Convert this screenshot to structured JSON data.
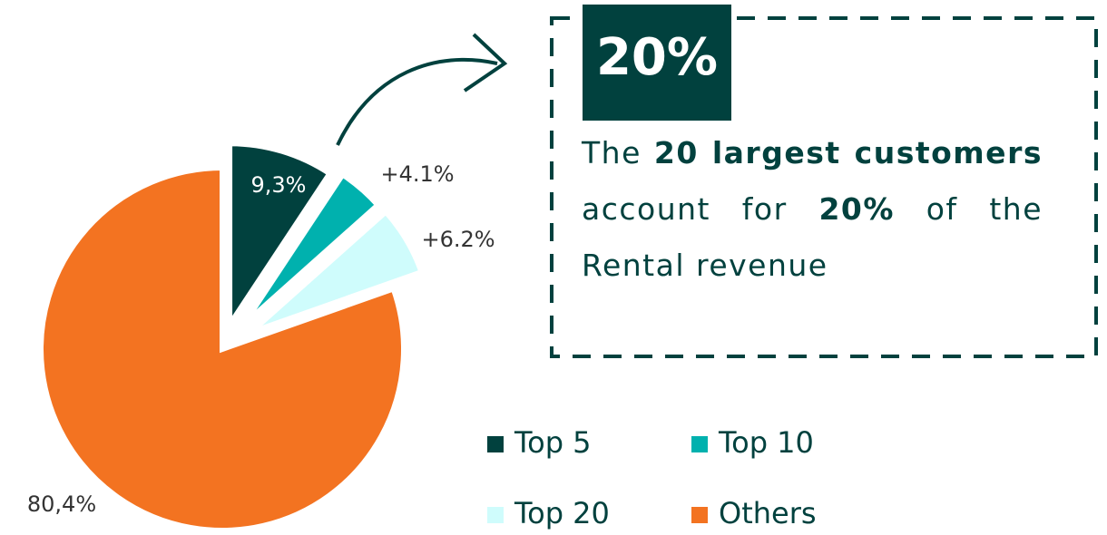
{
  "chart_data": {
    "type": "pie",
    "categories": [
      "Top 5",
      "Top 10",
      "Top 20",
      "Others"
    ],
    "values": [
      9.3,
      4.1,
      6.2,
      80.4
    ],
    "value_labels": [
      "9,3%",
      "+4.1%",
      "+6.2%",
      "80,4%"
    ],
    "colors": [
      "#01413e",
      "#00b1ae",
      "#cffcfc",
      "#f37321"
    ],
    "annotation": {
      "badge": "20%",
      "text": [
        {
          "text": "The ",
          "bold": false
        },
        {
          "text": "20 largest customers",
          "bold": true
        },
        {
          "text": " account for ",
          "bold": false
        },
        {
          "text": "20%",
          "bold": true
        },
        {
          "text": " of the Rental revenue",
          "bold": false
        }
      ]
    }
  }
}
